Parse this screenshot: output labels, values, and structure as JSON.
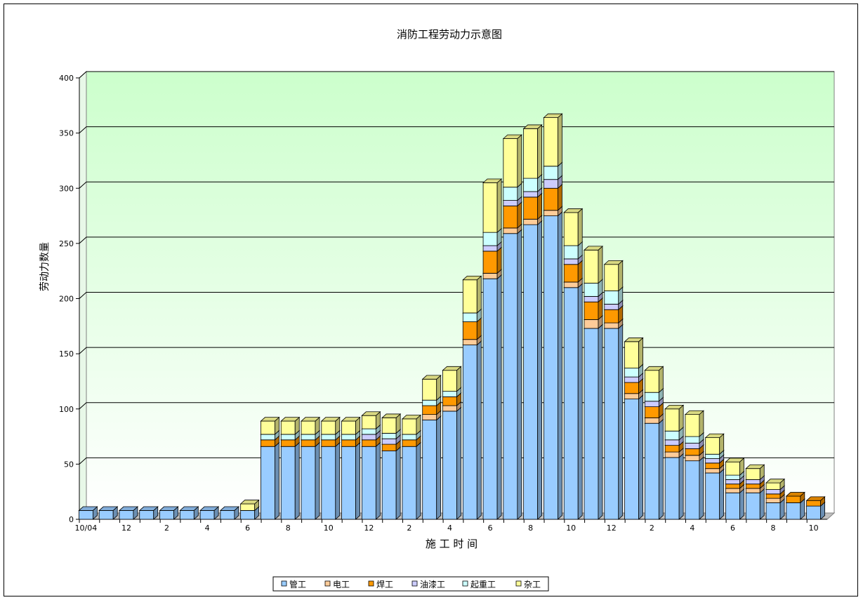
{
  "chart_data": {
    "type": "bar",
    "stacked": true,
    "three_d": true,
    "title": "消防工程劳动力示意图",
    "xlabel": "施 工 时 间",
    "ylabel": "劳动力数量",
    "ylim": [
      0,
      400
    ],
    "yticks": [
      "0",
      "50",
      "100",
      "150",
      "200",
      "250",
      "300",
      "350",
      "400"
    ],
    "grid": true,
    "legend_position": "bottom",
    "categories": [
      "10/04",
      "",
      "12",
      "",
      "2",
      "",
      "4",
      "",
      "6",
      "",
      "8",
      "",
      "10",
      "",
      "12",
      "",
      "2",
      "",
      "4",
      "",
      "6",
      "",
      "8",
      "",
      "10",
      "",
      "12",
      "",
      "2",
      "",
      "4",
      "",
      "6",
      "",
      "8",
      "",
      "10"
    ],
    "series": [
      {
        "name": "管工",
        "color": "#99ccff",
        "values": [
          8,
          8,
          8,
          8,
          8,
          8,
          8,
          8,
          8,
          66,
          66,
          66,
          66,
          66,
          66,
          62,
          66,
          90,
          98,
          158,
          218,
          259,
          267,
          275,
          210,
          173,
          173,
          109,
          87,
          56,
          53,
          42,
          24,
          24,
          15,
          15,
          12
        ]
      },
      {
        "name": "电工",
        "color": "#ffcc99",
        "values": [
          0,
          0,
          0,
          0,
          0,
          0,
          0,
          0,
          0,
          0,
          0,
          0,
          0,
          0,
          0,
          0,
          0,
          5,
          5,
          5,
          5,
          5,
          5,
          5,
          5,
          8,
          5,
          5,
          5,
          5,
          5,
          4,
          4,
          4,
          4,
          0,
          0
        ]
      },
      {
        "name": "焊工",
        "color": "#ff9900",
        "values": [
          0,
          0,
          0,
          0,
          0,
          0,
          0,
          0,
          0,
          6,
          6,
          6,
          6,
          6,
          6,
          6,
          6,
          8,
          8,
          16,
          20,
          20,
          20,
          20,
          16,
          16,
          12,
          10,
          10,
          6,
          6,
          5,
          4,
          4,
          4,
          6,
          5
        ]
      },
      {
        "name": "油漆工",
        "color": "#ccccff",
        "values": [
          0,
          0,
          0,
          0,
          0,
          0,
          0,
          0,
          0,
          0,
          0,
          0,
          0,
          0,
          5,
          5,
          0,
          0,
          0,
          0,
          5,
          5,
          5,
          8,
          5,
          5,
          5,
          5,
          5,
          5,
          5,
          4,
          4,
          4,
          4,
          0,
          0
        ]
      },
      {
        "name": "起重工",
        "color": "#ccffff",
        "values": [
          0,
          0,
          0,
          0,
          0,
          0,
          0,
          0,
          0,
          5,
          5,
          5,
          5,
          5,
          5,
          5,
          5,
          5,
          5,
          8,
          12,
          12,
          12,
          12,
          12,
          12,
          12,
          8,
          8,
          8,
          6,
          4,
          4,
          0,
          0,
          0,
          0
        ]
      },
      {
        "name": "杂工",
        "color": "#ffff99",
        "values": [
          0,
          0,
          0,
          0,
          0,
          0,
          0,
          0,
          6,
          12,
          12,
          12,
          12,
          12,
          12,
          14,
          14,
          19,
          19,
          30,
          45,
          44,
          45,
          44,
          30,
          30,
          24,
          24,
          20,
          20,
          20,
          15,
          12,
          10,
          6,
          0,
          0
        ]
      }
    ]
  }
}
